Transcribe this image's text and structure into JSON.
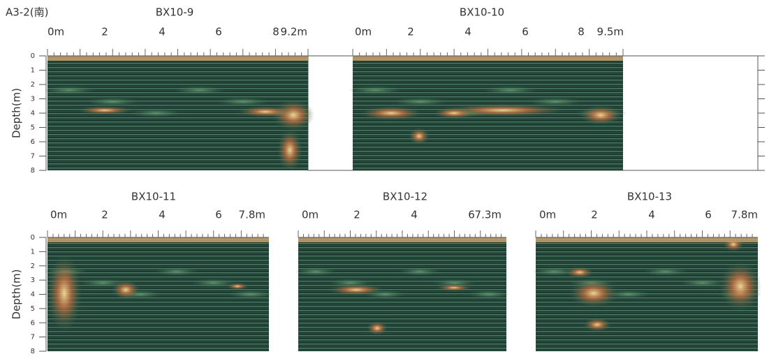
{
  "figure_label": "A3-2(南)",
  "rows": [
    {
      "depth_label": "Depth(m)",
      "depth_ticks": [
        "0",
        "1",
        "2",
        "3",
        "4",
        "5",
        "6",
        "7",
        "8"
      ],
      "panels": [
        {
          "title": "BX10-9",
          "ticks": [
            "0m",
            "2",
            "4",
            "6",
            "8",
            "9.2m"
          ]
        },
        {
          "title": "BX10-10",
          "ticks": [
            "0m",
            "2",
            "4",
            "6",
            "8",
            "9.5m"
          ]
        }
      ]
    },
    {
      "depth_label": "Depth(m)",
      "depth_ticks": [
        "0",
        "1",
        "2",
        "3",
        "4",
        "5",
        "6",
        "7",
        "8"
      ],
      "panels": [
        {
          "title": "BX10-11",
          "ticks": [
            "0m",
            "2",
            "4",
            "6",
            "7.8m"
          ]
        },
        {
          "title": "BX10-12",
          "ticks": [
            "0m",
            "2",
            "4",
            "6",
            "7.3m"
          ]
        },
        {
          "title": "BX10-13",
          "ticks": [
            "0m",
            "2",
            "4",
            "6",
            "7.8m"
          ]
        }
      ]
    }
  ]
}
